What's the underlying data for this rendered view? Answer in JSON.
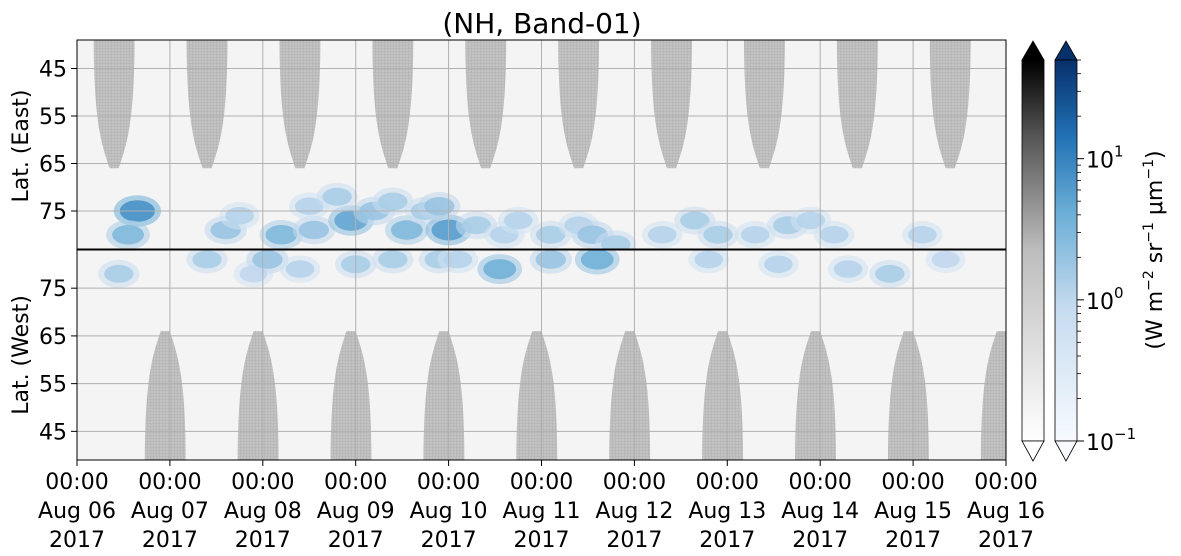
{
  "chart_data": {
    "type": "heatmap",
    "title": "(NH, Band-01)",
    "panels": [
      {
        "name": "east",
        "ylabel": "Lat. (East)",
        "ylim": [
          39,
          83
        ],
        "yticks": [
          45,
          55,
          65,
          75
        ],
        "orientation": "increasing-down"
      },
      {
        "name": "west",
        "ylabel": "Lat. (West)",
        "ylim": [
          39,
          83
        ],
        "yticks": [
          75,
          65,
          55,
          45
        ],
        "orientation": "increasing-up"
      }
    ],
    "xticks": [
      {
        "time": "00:00",
        "date": "Aug 06",
        "year": "2017"
      },
      {
        "time": "00:00",
        "date": "Aug 07",
        "year": "2017"
      },
      {
        "time": "00:00",
        "date": "Aug 08",
        "year": "2017"
      },
      {
        "time": "00:00",
        "date": "Aug 09",
        "year": "2017"
      },
      {
        "time": "00:00",
        "date": "Aug 10",
        "year": "2017"
      },
      {
        "time": "00:00",
        "date": "Aug 11",
        "year": "2017"
      },
      {
        "time": "00:00",
        "date": "Aug 12",
        "year": "2017"
      },
      {
        "time": "00:00",
        "date": "Aug 13",
        "year": "2017"
      },
      {
        "time": "00:00",
        "date": "Aug 14",
        "year": "2017"
      },
      {
        "time": "00:00",
        "date": "Aug 15",
        "year": "2017"
      },
      {
        "time": "00:00",
        "date": "Aug 16",
        "year": "2017"
      }
    ],
    "xlim": [
      "2017-08-06 00:00",
      "2017-08-16 00:00"
    ],
    "colorbar": {
      "label": "(W m$^{-2}$ sr$^{-1}$ $\\mu$m$^{-1}$)",
      "label_parts": {
        "a": "(W m",
        "b": "−2",
        "c": " sr",
        "d": "−1",
        "e": " μm",
        "f": "−1",
        "g": ")"
      },
      "scale": "log",
      "range": [
        0.1,
        50
      ],
      "ticks": [
        {
          "base": "10",
          "exp": "1"
        },
        {
          "base": "10",
          "exp": "0"
        },
        {
          "base": "10",
          "exp": "−1"
        }
      ],
      "cmaps": [
        "Greys",
        "Blues"
      ],
      "extend": "both"
    },
    "night_shading": {
      "color": "#bfbfbf",
      "east_centers_days": [
        0.4,
        1.4,
        2.4,
        3.4,
        4.4,
        5.4,
        6.4,
        7.4,
        8.4,
        9.4
      ],
      "west_centers_days": [
        0.95,
        1.95,
        2.95,
        3.95,
        4.95,
        5.95,
        6.95,
        7.95,
        8.95,
        9.95
      ],
      "edge_latitude": 66
    },
    "blue_clusters": [
      {
        "day": 0.65,
        "lat": 75,
        "panel": "east",
        "value": 8
      },
      {
        "day": 0.55,
        "lat": 80,
        "panel": "east",
        "value": 3
      },
      {
        "day": 0.45,
        "lat": 78,
        "panel": "west",
        "value": 1.5
      },
      {
        "day": 1.6,
        "lat": 79,
        "panel": "east",
        "value": 2
      },
      {
        "day": 1.75,
        "lat": 76,
        "panel": "east",
        "value": 1.2
      },
      {
        "day": 1.4,
        "lat": 81,
        "panel": "west",
        "value": 1.5
      },
      {
        "day": 1.9,
        "lat": 78,
        "panel": "west",
        "value": 1
      },
      {
        "day": 2.2,
        "lat": 80,
        "panel": "east",
        "value": 3
      },
      {
        "day": 2.05,
        "lat": 81,
        "panel": "west",
        "value": 2
      },
      {
        "day": 2.55,
        "lat": 79,
        "panel": "east",
        "value": 2
      },
      {
        "day": 2.5,
        "lat": 74,
        "panel": "east",
        "value": 1.2
      },
      {
        "day": 2.4,
        "lat": 79,
        "panel": "west",
        "value": 1.2
      },
      {
        "day": 2.95,
        "lat": 77,
        "panel": "east",
        "value": 5
      },
      {
        "day": 2.8,
        "lat": 72,
        "panel": "east",
        "value": 1.5
      },
      {
        "day": 3.2,
        "lat": 75,
        "panel": "east",
        "value": 2
      },
      {
        "day": 3.0,
        "lat": 80,
        "panel": "west",
        "value": 1.5
      },
      {
        "day": 3.4,
        "lat": 81,
        "panel": "west",
        "value": 1.5
      },
      {
        "day": 3.55,
        "lat": 79,
        "panel": "east",
        "value": 3
      },
      {
        "day": 3.75,
        "lat": 75,
        "panel": "east",
        "value": 1.5
      },
      {
        "day": 3.4,
        "lat": 73,
        "panel": "east",
        "value": 1.5
      },
      {
        "day": 3.9,
        "lat": 81,
        "panel": "west",
        "value": 1.5
      },
      {
        "day": 4.0,
        "lat": 79,
        "panel": "east",
        "value": 6
      },
      {
        "day": 3.9,
        "lat": 74,
        "panel": "east",
        "value": 2
      },
      {
        "day": 4.1,
        "lat": 81,
        "panel": "west",
        "value": 1.2
      },
      {
        "day": 4.3,
        "lat": 78,
        "panel": "east",
        "value": 1.5
      },
      {
        "day": 4.6,
        "lat": 80,
        "panel": "east",
        "value": 1.2
      },
      {
        "day": 4.55,
        "lat": 79,
        "panel": "west",
        "value": 4
      },
      {
        "day": 4.75,
        "lat": 77,
        "panel": "east",
        "value": 1.2
      },
      {
        "day": 5.1,
        "lat": 80,
        "panel": "east",
        "value": 1.5
      },
      {
        "day": 5.1,
        "lat": 81,
        "panel": "west",
        "value": 2
      },
      {
        "day": 5.4,
        "lat": 78,
        "panel": "east",
        "value": 1.2
      },
      {
        "day": 5.55,
        "lat": 80,
        "panel": "east",
        "value": 2
      },
      {
        "day": 5.6,
        "lat": 81,
        "panel": "west",
        "value": 4
      },
      {
        "day": 5.8,
        "lat": 82,
        "panel": "east",
        "value": 1.5
      },
      {
        "day": 6.3,
        "lat": 80,
        "panel": "east",
        "value": 1.2
      },
      {
        "day": 6.65,
        "lat": 77,
        "panel": "east",
        "value": 1.5
      },
      {
        "day": 6.9,
        "lat": 80,
        "panel": "east",
        "value": 1.5
      },
      {
        "day": 6.8,
        "lat": 81,
        "panel": "west",
        "value": 1.2
      },
      {
        "day": 7.3,
        "lat": 80,
        "panel": "east",
        "value": 1.2
      },
      {
        "day": 7.65,
        "lat": 78,
        "panel": "east",
        "value": 1.5
      },
      {
        "day": 7.55,
        "lat": 80,
        "panel": "west",
        "value": 1.2
      },
      {
        "day": 7.9,
        "lat": 77,
        "panel": "east",
        "value": 1.2
      },
      {
        "day": 8.15,
        "lat": 80,
        "panel": "east",
        "value": 1.2
      },
      {
        "day": 8.3,
        "lat": 79,
        "panel": "west",
        "value": 1.2
      },
      {
        "day": 8.75,
        "lat": 78,
        "panel": "west",
        "value": 1.5
      },
      {
        "day": 9.1,
        "lat": 80,
        "panel": "east",
        "value": 1.2
      },
      {
        "day": 9.35,
        "lat": 81,
        "panel": "west",
        "value": 1
      }
    ]
  }
}
